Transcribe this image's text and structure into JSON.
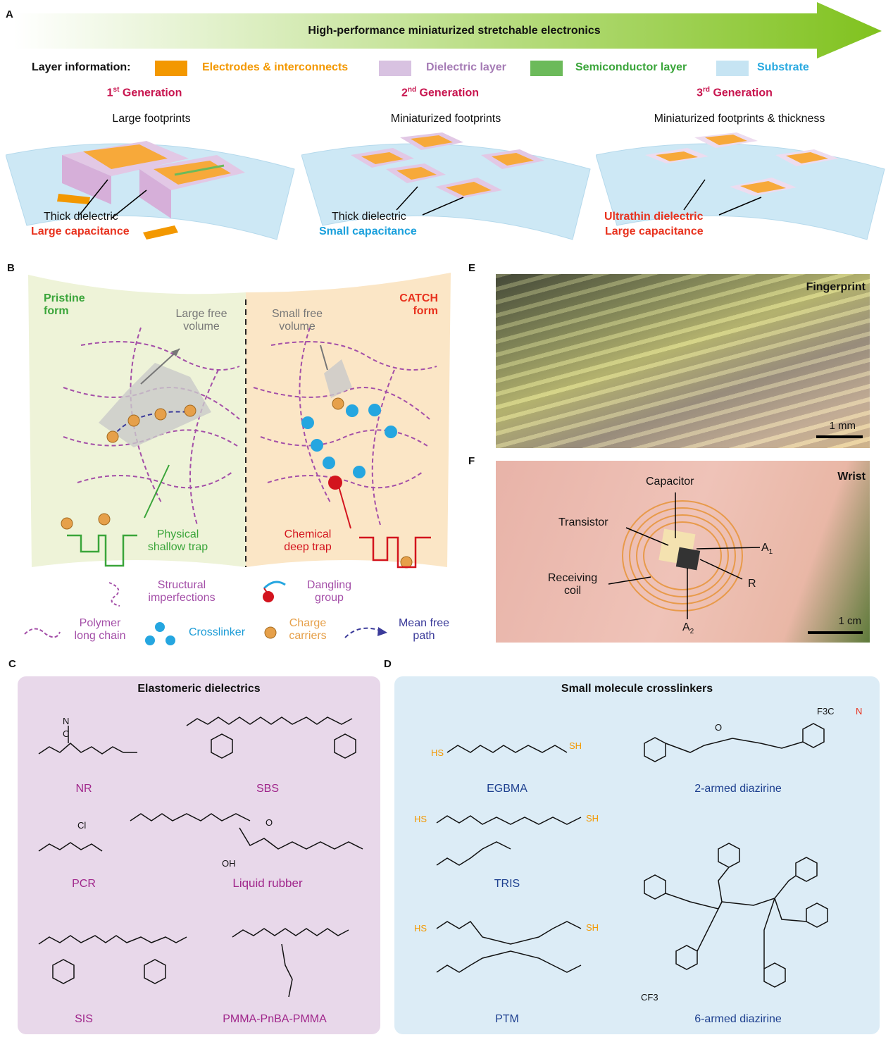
{
  "panels": {
    "a": "A",
    "b": "B",
    "c": "C",
    "d": "D",
    "e": "E",
    "f": "F"
  },
  "panel_a": {
    "banner": "High-performance miniaturized stretchable electronics",
    "layer_info_label": "Layer information:",
    "legend": [
      {
        "label": "Electrodes & interconnects",
        "color": "#f39800"
      },
      {
        "label": "Dielectric layer",
        "color": "#d8c2e1"
      },
      {
        "label": "Semiconductor layer",
        "color": "#6cba5a"
      },
      {
        "label": "Substrate",
        "color": "#c6e4f3"
      }
    ],
    "generations": [
      {
        "num": "1",
        "sup": "st",
        "word": "Generation",
        "subtitle": "Large footprints",
        "line1": "Thick dielectric",
        "line2": "Large capacitance",
        "line2_color": "#e8321e"
      },
      {
        "num": "2",
        "sup": "nd",
        "word": "Generation",
        "subtitle": "Miniaturized footprints",
        "line1": "Thick dielectric",
        "line2": "Small capacitance",
        "line2_color": "#1aa0dc"
      },
      {
        "num": "3",
        "sup": "rd",
        "word": "Generation",
        "subtitle": "Miniaturized footprints & thickness",
        "line1": "Ultrathin dielectric",
        "line2": "Large capacitance",
        "line2_color": "#e8321e",
        "line1_color": "#e8321e"
      }
    ]
  },
  "panel_b": {
    "pristine": "Pristine form",
    "catch": "CATCH form",
    "large_fv": "Large free volume",
    "small_fv": "Small free volume",
    "physical_trap": "Physical shallow trap",
    "chemical_trap": "Chemical deep trap",
    "legend": {
      "structural": "Structural imperfections",
      "dangling": "Dangling group",
      "polymer": "Polymer long chain",
      "crosslinker": "Crosslinker",
      "charge": "Charge carriers",
      "mfp": "Mean free path"
    },
    "colors": {
      "pristine_bg": "#eef3d8",
      "catch_bg": "#fbe6c6",
      "chain": "#a44fa8",
      "crosslinker": "#25a6e0",
      "carrier": "#e6a04a"
    }
  },
  "panel_e": {
    "label": "Fingerprint",
    "scale": "1 mm"
  },
  "panel_f": {
    "label": "Wrist",
    "capacitor": "Capacitor",
    "transistor": "Transistor",
    "coil": "Receiving coil",
    "a1": "A",
    "a1_sub": "1",
    "r": "R",
    "a2": "A",
    "a2_sub": "2",
    "scale": "1 cm"
  },
  "panel_c": {
    "title": "Elastomeric dielectrics",
    "compounds": [
      "NR",
      "SBS",
      "PCR",
      "Liquid rubber",
      "SIS",
      "PMMA-PnBA-PMMA"
    ],
    "atoms": {
      "n": "N",
      "c": "C",
      "cl": "Cl",
      "oh": "OH",
      "o": "O"
    }
  },
  "panel_d": {
    "title": "Small molecule crosslinkers",
    "compounds": [
      "EGBMA",
      "2-armed diazirine",
      "TRIS",
      "6-armed diazirine",
      "PTM"
    ],
    "atoms": {
      "hs": "HS",
      "sh": "SH",
      "f3c": "F3C",
      "cf3": "CF3",
      "n": "N",
      "o": "O"
    }
  }
}
